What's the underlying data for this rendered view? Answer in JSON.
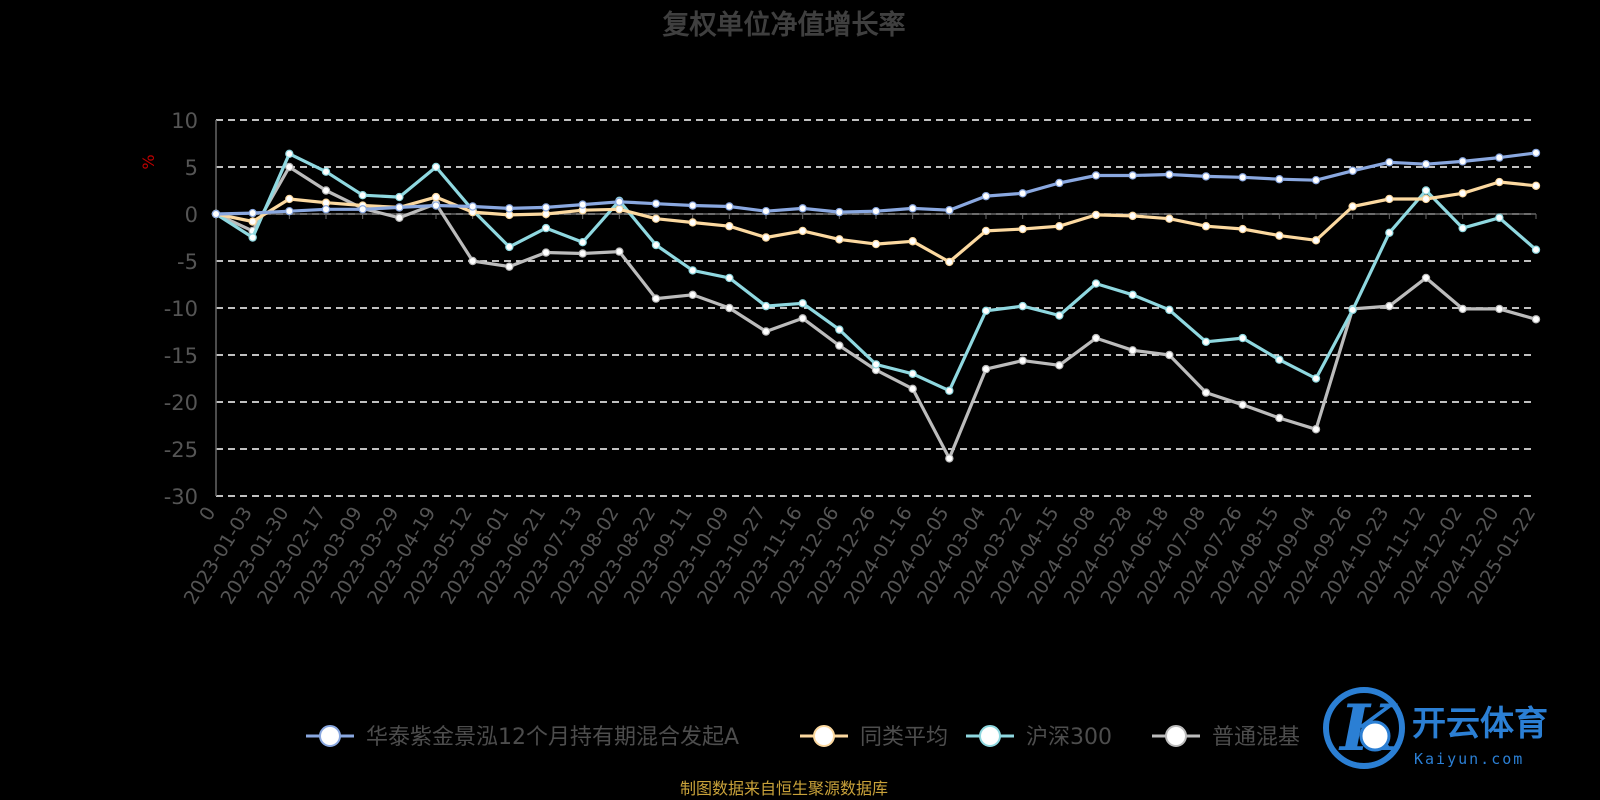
{
  "chart_data": {
    "type": "line",
    "title": "复权单位净值增长率",
    "ylabel": "%",
    "ylim": [
      -30,
      10
    ],
    "yticks": [
      10,
      5,
      0,
      -5,
      -10,
      -15,
      -20,
      -25,
      -30
    ],
    "grid": true,
    "legend_position": "bottom",
    "categories": [
      "0",
      "2023-01-03",
      "2023-01-30",
      "2023-02-17",
      "2023-03-09",
      "2023-03-29",
      "2023-04-19",
      "2023-05-12",
      "2023-06-01",
      "2023-06-21",
      "2023-07-13",
      "2023-08-02",
      "2023-08-22",
      "2023-09-11",
      "2023-10-09",
      "2023-10-27",
      "2023-11-16",
      "2023-12-06",
      "2023-12-26",
      "2024-01-16",
      "2024-02-05",
      "2024-03-04",
      "2024-03-22",
      "2024-04-15",
      "2024-05-08",
      "2024-05-28",
      "2024-06-18",
      "2024-07-08",
      "2024-07-26",
      "2024-08-15",
      "2024-09-04",
      "2024-09-26",
      "2024-10-23",
      "2024-11-12",
      "2024-12-02",
      "2024-12-20",
      "2025-01-22"
    ],
    "series": [
      {
        "name": "华泰紫金景泓12个月持有期混合发起A",
        "color": "#8aa8e0",
        "values": [
          0,
          0.1,
          0.3,
          0.5,
          0.5,
          0.7,
          0.9,
          0.8,
          0.6,
          0.7,
          1.0,
          1.3,
          1.1,
          0.9,
          0.8,
          0.3,
          0.6,
          0.2,
          0.3,
          0.6,
          0.4,
          1.9,
          2.2,
          3.3,
          4.1,
          4.1,
          4.2,
          4.0,
          3.9,
          3.7,
          3.6,
          4.6,
          5.5,
          5.3,
          5.6,
          6.0,
          6.5
        ]
      },
      {
        "name": "同类平均",
        "color": "#fcd9a0",
        "values": [
          0,
          -0.8,
          1.6,
          1.2,
          0.9,
          0.7,
          1.8,
          0.2,
          -0.1,
          0.0,
          0.4,
          0.5,
          -0.5,
          -0.9,
          -1.3,
          -2.5,
          -1.8,
          -2.7,
          -3.2,
          -2.9,
          -5.1,
          -1.8,
          -1.6,
          -1.3,
          -0.1,
          -0.2,
          -0.5,
          -1.3,
          -1.6,
          -2.3,
          -2.8,
          0.8,
          1.6,
          1.6,
          2.2,
          3.4,
          3.0
        ]
      },
      {
        "name": "沪深300",
        "color": "#8fd8e0",
        "values": [
          0,
          -2.5,
          6.4,
          4.5,
          2.0,
          1.8,
          5.0,
          0.4,
          -3.5,
          -1.5,
          -3.0,
          1.4,
          -3.3,
          -6.0,
          -6.8,
          -9.8,
          -9.5,
          -12.3,
          -16.0,
          -17.0,
          -18.8,
          -10.3,
          -9.8,
          -10.8,
          -7.4,
          -8.6,
          -10.2,
          -13.6,
          -13.2,
          -15.5,
          -17.5,
          -10.2,
          -2.0,
          2.5,
          -1.5,
          -0.4,
          -3.8
        ]
      },
      {
        "name": "普通混基",
        "color": "#bcbcbc",
        "values": [
          0,
          -1.8,
          5.0,
          2.5,
          0.6,
          -0.4,
          1.1,
          -5.0,
          -5.6,
          -4.1,
          -4.2,
          -4.0,
          -9.0,
          -8.6,
          -10.0,
          -12.5,
          -11.1,
          -14.0,
          -16.6,
          -18.6,
          -26.0,
          -16.5,
          -15.6,
          -16.1,
          -13.2,
          -14.5,
          -15.0,
          -19.0,
          -20.3,
          -21.7,
          -22.9,
          -10.1,
          -9.8,
          -6.8,
          -10.1,
          -10.1,
          -11.2
        ]
      }
    ]
  },
  "source_note": "制图数据来自恒生聚源数据库",
  "watermark": {
    "name": "开云体育",
    "sub": "Kaiyun.com",
    "glyph": "K"
  }
}
